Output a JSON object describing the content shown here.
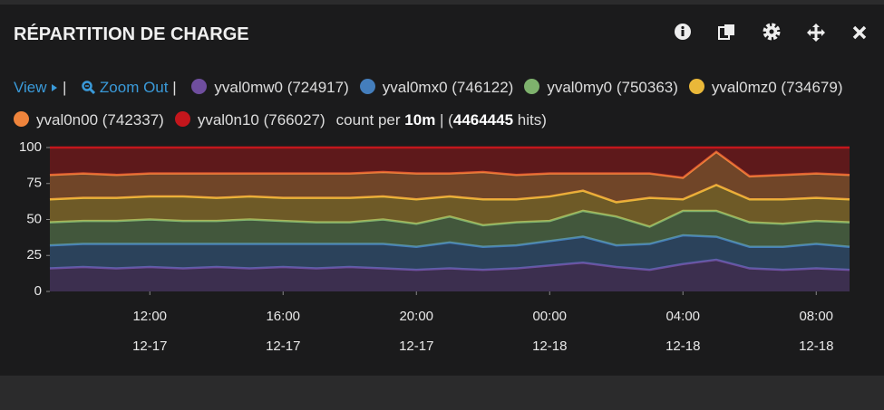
{
  "header": {
    "title": "RÉPARTITION DE CHARGE"
  },
  "toolbar": {
    "view": "View",
    "zoom_out": "Zoom Out"
  },
  "chart_data": {
    "type": "stacked-area",
    "x": [
      "12-17 09:00",
      "12-17 10:00",
      "12-17 11:00",
      "12-17 12:00",
      "12-17 13:00",
      "12-17 14:00",
      "12-17 15:00",
      "12-17 16:00",
      "12-17 17:00",
      "12-17 18:00",
      "12-17 19:00",
      "12-17 20:00",
      "12-17 21:00",
      "12-17 22:00",
      "12-17 23:00",
      "12-18 00:00",
      "12-18 01:00",
      "12-18 02:00",
      "12-18 03:00",
      "12-18 04:00",
      "12-18 05:00",
      "12-18 06:00",
      "12-18 07:00",
      "12-18 08:00",
      "12-18 09:00"
    ],
    "xlim": [
      "12-17 09:00",
      "12-18 09:00"
    ],
    "xticks": [
      {
        "value": "12-17 12:00",
        "label": [
          "12:00",
          "12-17"
        ]
      },
      {
        "value": "12-17 16:00",
        "label": [
          "16:00",
          "12-17"
        ]
      },
      {
        "value": "12-17 20:00",
        "label": [
          "20:00",
          "12-17"
        ]
      },
      {
        "value": "12-18 00:00",
        "label": [
          "00:00",
          "12-18"
        ]
      },
      {
        "value": "12-18 04:00",
        "label": [
          "04:00",
          "12-18"
        ]
      },
      {
        "value": "12-18 08:00",
        "label": [
          "08:00",
          "12-18"
        ]
      }
    ],
    "ylim": [
      0,
      100
    ],
    "yticks": [
      0,
      25,
      50,
      75,
      100
    ],
    "series": [
      {
        "name": "yval0mw0 (724917)",
        "color": "#6f4e9e",
        "values": [
          16,
          17,
          16,
          17,
          16,
          17,
          16,
          17,
          16,
          17,
          16,
          15,
          16,
          15,
          16,
          18,
          20,
          17,
          15,
          19,
          22,
          16,
          15,
          16,
          15
        ]
      },
      {
        "name": "yval0mx0 (746122)",
        "color": "#447ebc",
        "values": [
          16,
          16,
          17,
          16,
          17,
          16,
          17,
          16,
          17,
          16,
          17,
          16,
          18,
          16,
          16,
          17,
          18,
          15,
          18,
          20,
          16,
          15,
          16,
          17,
          16
        ]
      },
      {
        "name": "yval0my0 (750363)",
        "color": "#7eb26d",
        "values": [
          16,
          16,
          16,
          17,
          16,
          16,
          17,
          16,
          15,
          15,
          17,
          16,
          18,
          15,
          16,
          14,
          18,
          20,
          12,
          17,
          18,
          17,
          16,
          16,
          17
        ]
      },
      {
        "name": "yval0mz0 (734679)",
        "color": "#eab839",
        "values": [
          16,
          16,
          16,
          16,
          17,
          16,
          16,
          16,
          17,
          17,
          16,
          17,
          14,
          18,
          16,
          17,
          14,
          10,
          20,
          8,
          18,
          16,
          17,
          16,
          16
        ]
      },
      {
        "name": "yval0n00 (742337)",
        "color": "#ef843c",
        "values": [
          17,
          17,
          16,
          16,
          16,
          17,
          16,
          17,
          17,
          17,
          17,
          18,
          16,
          19,
          17,
          16,
          12,
          20,
          17,
          15,
          23,
          16,
          17,
          17,
          17
        ]
      },
      {
        "name": "yval0n10 (766027)",
        "color": "#c4161c",
        "values": [
          19,
          18,
          19,
          18,
          18,
          18,
          18,
          18,
          18,
          18,
          17,
          18,
          18,
          17,
          19,
          18,
          18,
          18,
          18,
          21,
          3,
          20,
          19,
          18,
          19
        ]
      }
    ],
    "info": {
      "prefix": "count per",
      "interval": "10m",
      "separator": "| (",
      "hits": 4464445,
      "suffix": "hits)"
    }
  }
}
